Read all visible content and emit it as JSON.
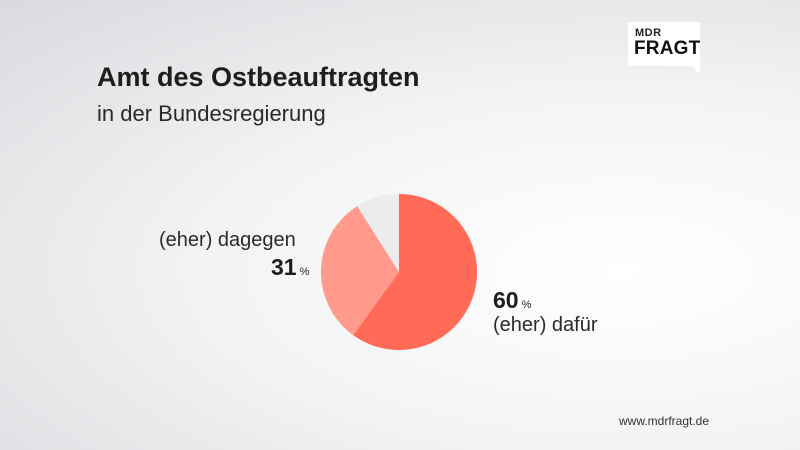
{
  "logo": {
    "line1": "MDR",
    "line2": "FRAGT"
  },
  "header": {
    "title": "Amt des Ostbeauftragten",
    "subtitle": "in der Bundesregierung"
  },
  "chart_data": {
    "type": "pie",
    "title": "Amt des Ostbeauftragten",
    "subtitle": "in der Bundesregierung",
    "slices": [
      {
        "label": "(eher) dafür",
        "value": 60,
        "color": "#ff6b57"
      },
      {
        "label": "(eher) dagegen",
        "value": 31,
        "color": "#ff9a8d"
      },
      {
        "label": "",
        "value": 9,
        "color": "#ececed"
      }
    ],
    "unit": "%",
    "start_angle_deg": 0,
    "direction": "clockwise"
  },
  "labels": {
    "dafuer": {
      "value": "60",
      "unit": "%",
      "text": "(eher) dafür"
    },
    "dagegen": {
      "value": "31",
      "unit": "%",
      "text": "(eher)  dagegen"
    }
  },
  "footer": {
    "url": "www.mdrfragt.de"
  }
}
